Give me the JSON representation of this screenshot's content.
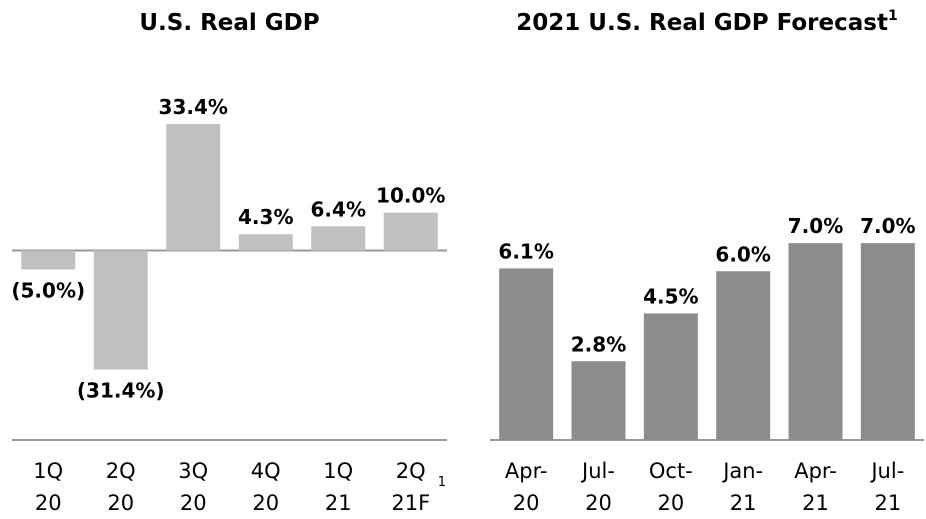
{
  "chart_data": [
    {
      "type": "bar",
      "title": "U.S. Real GDP",
      "categories": [
        [
          "1Q",
          "20"
        ],
        [
          "2Q",
          "20"
        ],
        [
          "3Q",
          "20"
        ],
        [
          "4Q",
          "20"
        ],
        [
          "1Q",
          "21"
        ],
        [
          "2Q",
          "21F"
        ]
      ],
      "category_note": "1",
      "values": [
        -5.0,
        -31.4,
        33.4,
        4.3,
        6.4,
        10.0
      ],
      "value_labels": [
        "(5.0%)",
        "(31.4%)",
        "33.4%",
        "4.3%",
        "6.4%",
        "10.0%"
      ],
      "color": "#c0c0c0",
      "ylim": [
        -50,
        45
      ]
    },
    {
      "type": "bar",
      "title": "2021 U.S. Real GDP Forecast",
      "title_note": "1",
      "categories": [
        [
          "Apr-",
          "20"
        ],
        [
          "Jul-",
          "20"
        ],
        [
          "Oct-",
          "20"
        ],
        [
          "Jan-",
          "21"
        ],
        [
          "Apr-",
          "21"
        ],
        [
          "Jul-",
          "21"
        ]
      ],
      "values": [
        6.1,
        2.8,
        4.5,
        6.0,
        7.0,
        7.0
      ],
      "value_labels": [
        "6.1%",
        "2.8%",
        "4.5%",
        "6.0%",
        "7.0%",
        "7.0%"
      ],
      "color": "#8c8c8c",
      "ylim": [
        0,
        12.8
      ]
    }
  ]
}
